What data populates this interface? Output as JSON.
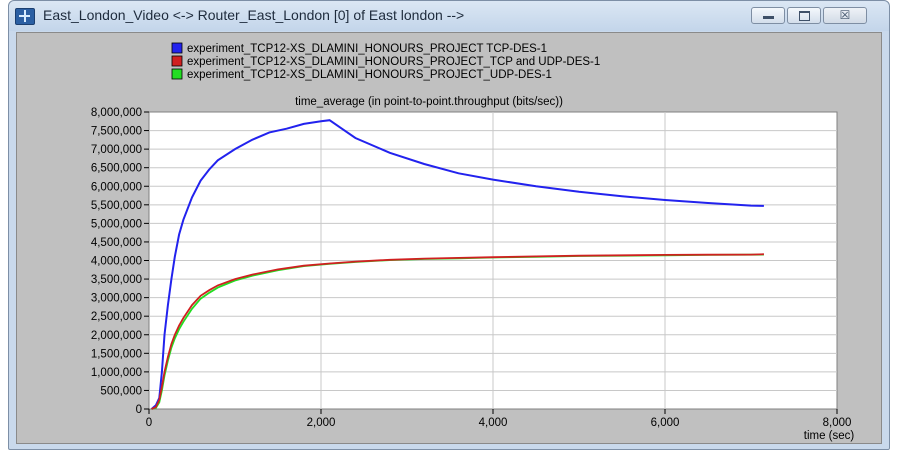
{
  "window": {
    "title": "East_London_Video <-> Router_East_London [0] of East london -->",
    "buttons": {
      "minimize_icon": "minimize-icon",
      "maximize_icon": "maximize-icon",
      "close_glyph": "☒"
    }
  },
  "colors": {
    "background": "#c0c0c0",
    "plot": "#ffffff",
    "grid": "#c8c8c8",
    "series_blue": "#2222ee",
    "series_red": "#d02020",
    "series_green": "#22dd22"
  },
  "chart_data": {
    "type": "line",
    "title": "time_average (in point-to-point.throughput (bits/sec))",
    "xlabel": "time (sec)",
    "ylabel": "",
    "xlim": [
      0,
      8000
    ],
    "ylim": [
      0,
      8000000
    ],
    "x_ticks": [
      0,
      2000,
      4000,
      6000,
      8000
    ],
    "x_tick_labels": [
      "0",
      "2,000",
      "4,000",
      "6,000",
      "8,000"
    ],
    "y_ticks": [
      0,
      500000,
      1000000,
      1500000,
      2000000,
      2500000,
      3000000,
      3500000,
      4000000,
      4500000,
      5000000,
      5500000,
      6000000,
      6500000,
      7000000,
      7500000,
      8000000
    ],
    "y_tick_labels": [
      "0",
      "500,000",
      "1,000,000",
      "1,500,000",
      "2,000,000",
      "2,500,000",
      "3,000,000",
      "3,500,000",
      "4,000,000",
      "4,500,000",
      "5,000,000",
      "5,500,000",
      "6,000,000",
      "6,500,000",
      "7,000,000",
      "7,500,000",
      "8,000,000"
    ],
    "grid": true,
    "legend_position": "top",
    "series": [
      {
        "name": "experiment_TCP12-XS_DLAMINI_HONOURS_PROJECT TCP-DES-1",
        "color": "#2222ee",
        "x": [
          30,
          80,
          120,
          150,
          180,
          220,
          260,
          300,
          350,
          400,
          500,
          600,
          700,
          800,
          1000,
          1200,
          1400,
          1600,
          1800,
          2000,
          2100,
          2400,
          2800,
          3200,
          3600,
          4000,
          4500,
          5000,
          5500,
          6000,
          6500,
          7000,
          7150
        ],
        "y": [
          0,
          100000,
          300000,
          1000000,
          2000000,
          2800000,
          3500000,
          4100000,
          4700000,
          5100000,
          5700000,
          6150000,
          6450000,
          6700000,
          7000000,
          7250000,
          7450000,
          7550000,
          7680000,
          7750000,
          7780000,
          7300000,
          6900000,
          6600000,
          6350000,
          6180000,
          6000000,
          5850000,
          5730000,
          5630000,
          5550000,
          5480000,
          5470000
        ]
      },
      {
        "name": "experiment_TCP12-XS_DLAMINI_HONOURS_PROJECT_TCP and UDP-DES-1",
        "color": "#d02020",
        "x": [
          30,
          80,
          120,
          150,
          180,
          220,
          260,
          300,
          350,
          400,
          500,
          600,
          700,
          800,
          1000,
          1200,
          1500,
          1800,
          2100,
          2400,
          2800,
          3200,
          3600,
          4000,
          4500,
          5000,
          5500,
          6000,
          6500,
          7000,
          7150
        ],
        "y": [
          0,
          50000,
          250000,
          600000,
          1000000,
          1400000,
          1750000,
          2000000,
          2250000,
          2450000,
          2800000,
          3050000,
          3200000,
          3330000,
          3500000,
          3620000,
          3760000,
          3860000,
          3920000,
          3970000,
          4020000,
          4050000,
          4070000,
          4090000,
          4110000,
          4130000,
          4140000,
          4150000,
          4155000,
          4160000,
          4170000
        ]
      },
      {
        "name": "experiment_TCP12-XS_DLAMINI_HONOURS_PROJECT_UDP-DES-1",
        "color": "#22dd22",
        "x": [
          30,
          80,
          120,
          150,
          180,
          220,
          260,
          300,
          350,
          400,
          500,
          600,
          700,
          800,
          1000,
          1200,
          1500,
          1800,
          2100,
          2400,
          2800,
          3200,
          3600,
          4000,
          4500,
          5000,
          5500,
          6000,
          6500,
          7000,
          7150
        ],
        "y": [
          0,
          30000,
          180000,
          500000,
          900000,
          1300000,
          1650000,
          1900000,
          2150000,
          2350000,
          2700000,
          2970000,
          3130000,
          3270000,
          3460000,
          3590000,
          3740000,
          3850000,
          3910000,
          3960000,
          4010000,
          4040000,
          4060000,
          4080000,
          4100000,
          4120000,
          4130000,
          4140000,
          4150000,
          4155000,
          4160000
        ]
      }
    ]
  }
}
